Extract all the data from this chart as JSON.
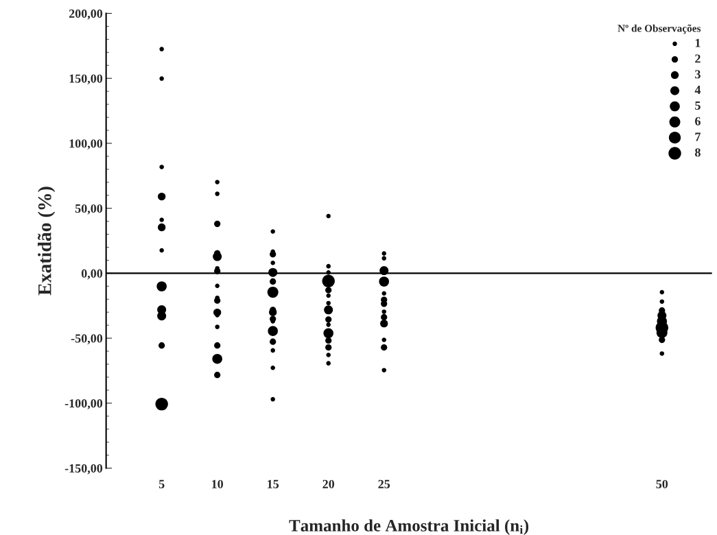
{
  "chart_data": {
    "type": "bubble",
    "xlabel": "Tamanho de Amostra Inicial (n$_{i}$)",
    "ylabel": "Exatidão (%)",
    "legend_title": "Nº de Observações",
    "grid": false,
    "xlim": [
      0,
      54.5
    ],
    "xticks": [
      5,
      10,
      15,
      20,
      25,
      50
    ],
    "ylim": [
      -150,
      200
    ],
    "yticks": [
      {
        "value": -150,
        "label": "-150,00"
      },
      {
        "value": -140,
        "label": null
      },
      {
        "value": -130,
        "label": null
      },
      {
        "value": -120,
        "label": null
      },
      {
        "value": -110,
        "label": null
      },
      {
        "value": -100,
        "label": "-100,00"
      },
      {
        "value": -90,
        "label": null
      },
      {
        "value": -80,
        "label": null
      },
      {
        "value": -70,
        "label": null
      },
      {
        "value": -60,
        "label": null
      },
      {
        "value": -50,
        "label": "-50,00"
      },
      {
        "value": -40,
        "label": null
      },
      {
        "value": -30,
        "label": null
      },
      {
        "value": -20,
        "label": null
      },
      {
        "value": -10,
        "label": null
      },
      {
        "value": 0,
        "label": "0,00"
      },
      {
        "value": 10,
        "label": null
      },
      {
        "value": 20,
        "label": null
      },
      {
        "value": 30,
        "label": null
      },
      {
        "value": 40,
        "label": null
      },
      {
        "value": 50,
        "label": "50,00"
      },
      {
        "value": 60,
        "label": null
      },
      {
        "value": 70,
        "label": null
      },
      {
        "value": 80,
        "label": null
      },
      {
        "value": 90,
        "label": null
      },
      {
        "value": 100,
        "label": "100,00"
      },
      {
        "value": 110,
        "label": null
      },
      {
        "value": 120,
        "label": null
      },
      {
        "value": 130,
        "label": null
      },
      {
        "value": 140,
        "label": null
      },
      {
        "value": 150,
        "label": "150,00"
      },
      {
        "value": 160,
        "label": null
      },
      {
        "value": 170,
        "label": null
      },
      {
        "value": 180,
        "label": null
      },
      {
        "value": 190,
        "label": null
      },
      {
        "value": 200,
        "label": "200,00"
      }
    ],
    "ref_lines": [
      {
        "axis": "y",
        "value": 0,
        "color": "#000000"
      }
    ],
    "size_legend": [
      1,
      2,
      3,
      4,
      5,
      6,
      7,
      8
    ],
    "series": [
      {
        "color": "#000000",
        "x": [
          5,
          5,
          5,
          5,
          5,
          5,
          5,
          5,
          5,
          5,
          5,
          5,
          10,
          10,
          10,
          10,
          10,
          10,
          10,
          10,
          10,
          10,
          10,
          10,
          10,
          10,
          10,
          10,
          15,
          15,
          15,
          15,
          15,
          15,
          15,
          15,
          15,
          15,
          15,
          15,
          15,
          15,
          15,
          15,
          20,
          20,
          20,
          20,
          20,
          20,
          20,
          20,
          20,
          20,
          20,
          20,
          20,
          20,
          20,
          25,
          25,
          25,
          25,
          25,
          25,
          25,
          25,
          25,
          25,
          25,
          25,
          25,
          50,
          50,
          50,
          50,
          50,
          50,
          50,
          50,
          50
        ],
        "values": [
          172.5,
          149.8,
          81.8,
          59.0,
          41.1,
          35.3,
          17.6,
          -10.1,
          -28.1,
          -32.9,
          -55.6,
          -100.7,
          70.1,
          61.1,
          38.0,
          15.3,
          12.8,
          3.8,
          1.7,
          -9.7,
          -18.9,
          -21.0,
          -30.2,
          -32.3,
          -41.3,
          -55.6,
          -65.9,
          -78.3,
          32.1,
          16.7,
          14.6,
          8.0,
          0.6,
          -6.4,
          -14.6,
          -28.2,
          -35.2,
          -37.0,
          -44.5,
          -52.7,
          -59.4,
          -72.8,
          -97.0,
          -30.0,
          44.0,
          5.4,
          0.6,
          -6.0,
          -13.0,
          -17.2,
          -23.0,
          -28.2,
          -35.6,
          -39.6,
          -46.2,
          -51.8,
          -57.1,
          -62.9,
          -69.3,
          15.2,
          11.5,
          2.0,
          -6.4,
          -15.5,
          -20.4,
          -23.5,
          -29.6,
          -33.8,
          -38.7,
          -51.3,
          -57.1,
          -74.6,
          -14.6,
          -21.8,
          -28.7,
          -32.6,
          -37.0,
          -41.9,
          -45.7,
          -51.3,
          -61.8
        ],
        "sizes": [
          1,
          1,
          1,
          3,
          1,
          3,
          1,
          5,
          4,
          4,
          2,
          8,
          1,
          1,
          2,
          2,
          4,
          1,
          2,
          1,
          1,
          2,
          3,
          1,
          1,
          2,
          5,
          2,
          1,
          1,
          2,
          1,
          4,
          2,
          6,
          2,
          2,
          1,
          5,
          2,
          1,
          1,
          1,
          3,
          1,
          1,
          1,
          8,
          2,
          1,
          1,
          4,
          2,
          1,
          5,
          2,
          2,
          1,
          1,
          1,
          1,
          4,
          5,
          1,
          2,
          2,
          1,
          2,
          3,
          1,
          2,
          1,
          1,
          1,
          2,
          4,
          5,
          8,
          6,
          2,
          1
        ]
      }
    ]
  }
}
